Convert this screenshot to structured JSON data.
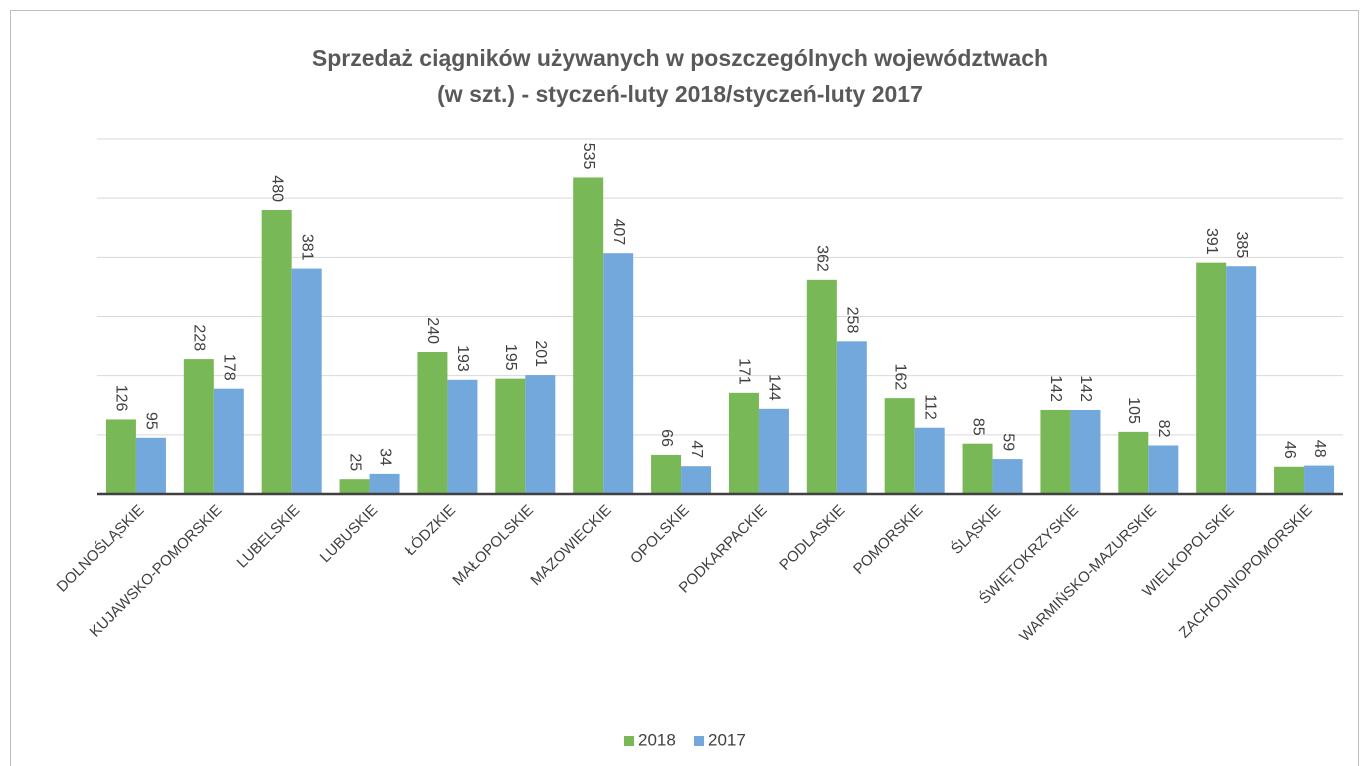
{
  "chart_data": {
    "type": "bar",
    "title": "Sprzedaż ciągników używanych w poszczególnych województwach\n(w szt.) - styczeń-luty 2018/styczeń-luty 2017",
    "categories": [
      "DOLNOŚLĄSKIE",
      "KUJAWSKO-POMORSKIE",
      "LUBELSKIE",
      "LUBUSKIE",
      "ŁÓDZKIE",
      "MAŁOPOLSKIE",
      "MAZOWIECKIE",
      "OPOLSKIE",
      "PODKARPACKIE",
      "PODLASKIE",
      "POMORSKIE",
      "ŚLĄSKIE",
      "ŚWIĘTOKRZYSKIE",
      "WARMIŃSKO-MAZURSKIE",
      "WIELKOPOLSKIE",
      "ZACHODNIOPOMORSKIE"
    ],
    "series": [
      {
        "name": "2018",
        "color": "#78b856",
        "values": [
          126,
          228,
          480,
          25,
          240,
          195,
          535,
          66,
          171,
          362,
          162,
          85,
          142,
          105,
          391,
          46
        ]
      },
      {
        "name": "2017",
        "color": "#72a8dc",
        "values": [
          95,
          178,
          381,
          34,
          193,
          201,
          407,
          47,
          144,
          258,
          112,
          59,
          142,
          82,
          385,
          48
        ]
      }
    ],
    "ylim": [
      0,
      600
    ],
    "yticks": [
      0,
      100,
      200,
      300,
      400,
      500,
      600
    ],
    "grid": true,
    "legend": "bottom"
  }
}
